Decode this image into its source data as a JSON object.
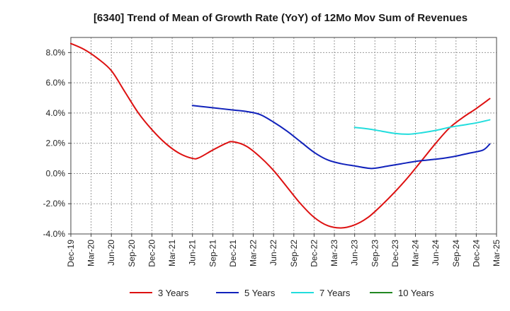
{
  "chart_data": {
    "type": "line",
    "title": "[6340]  Trend of Mean of Growth Rate (YoY) of 12Mo Mov Sum of Revenues",
    "xlabel": "",
    "ylabel": "",
    "ylim": [
      -4.0,
      9.0
    ],
    "yticks": [
      -4.0,
      -2.0,
      0.0,
      2.0,
      4.0,
      6.0,
      8.0
    ],
    "ytick_labels": [
      "-4.0%",
      "-2.0%",
      "0.0%",
      "2.0%",
      "4.0%",
      "6.0%",
      "8.0%"
    ],
    "xlim_months": [
      0,
      63
    ],
    "xticks_months": [
      0,
      3,
      6,
      9,
      12,
      15,
      18,
      21,
      24,
      27,
      30,
      33,
      36,
      39,
      42,
      45,
      48,
      51,
      54,
      57,
      60,
      63
    ],
    "xtick_labels": [
      "Dec-19",
      "Mar-20",
      "Jun-20",
      "Sep-20",
      "Dec-20",
      "Mar-21",
      "Jun-21",
      "Sep-21",
      "Dec-21",
      "Mar-22",
      "Jun-22",
      "Sep-22",
      "Dec-22",
      "Mar-23",
      "Jun-23",
      "Sep-23",
      "Dec-23",
      "Mar-24",
      "Jun-24",
      "Sep-24",
      "Dec-24",
      "Mar-25"
    ],
    "grid": true,
    "legend_position": "bottom",
    "series": [
      {
        "name": "3 Years",
        "color": "#dd1111",
        "points": [
          [
            0,
            8.6
          ],
          [
            2,
            8.2
          ],
          [
            4,
            7.6
          ],
          [
            6,
            6.8
          ],
          [
            8,
            5.4
          ],
          [
            10,
            4.0
          ],
          [
            12,
            2.9
          ],
          [
            14,
            2.0
          ],
          [
            16,
            1.35
          ],
          [
            18,
            1.0
          ],
          [
            19,
            1.05
          ],
          [
            21,
            1.55
          ],
          [
            23,
            2.0
          ],
          [
            24,
            2.1
          ],
          [
            26,
            1.8
          ],
          [
            28,
            1.1
          ],
          [
            30,
            0.2
          ],
          [
            32,
            -0.9
          ],
          [
            34,
            -2.0
          ],
          [
            36,
            -2.9
          ],
          [
            38,
            -3.45
          ],
          [
            40,
            -3.6
          ],
          [
            42,
            -3.4
          ],
          [
            44,
            -2.9
          ],
          [
            46,
            -2.1
          ],
          [
            48,
            -1.2
          ],
          [
            50,
            -0.2
          ],
          [
            52,
            0.9
          ],
          [
            54,
            2.0
          ],
          [
            56,
            3.0
          ],
          [
            58,
            3.7
          ],
          [
            60,
            4.3
          ],
          [
            62,
            4.95
          ]
        ]
      },
      {
        "name": "5 Years",
        "color": "#1122bb",
        "points": [
          [
            18,
            4.5
          ],
          [
            20,
            4.4
          ],
          [
            22,
            4.3
          ],
          [
            24,
            4.2
          ],
          [
            26,
            4.1
          ],
          [
            28,
            3.9
          ],
          [
            30,
            3.4
          ],
          [
            32,
            2.8
          ],
          [
            34,
            2.1
          ],
          [
            36,
            1.4
          ],
          [
            38,
            0.9
          ],
          [
            40,
            0.65
          ],
          [
            42,
            0.5
          ],
          [
            44,
            0.35
          ],
          [
            45,
            0.35
          ],
          [
            47,
            0.5
          ],
          [
            49,
            0.65
          ],
          [
            51,
            0.8
          ],
          [
            53,
            0.9
          ],
          [
            55,
            1.0
          ],
          [
            57,
            1.15
          ],
          [
            59,
            1.35
          ],
          [
            61,
            1.55
          ],
          [
            62,
            1.95
          ]
        ]
      },
      {
        "name": "7 Years",
        "color": "#22dddd",
        "points": [
          [
            42,
            3.05
          ],
          [
            44,
            2.95
          ],
          [
            46,
            2.8
          ],
          [
            48,
            2.65
          ],
          [
            50,
            2.6
          ],
          [
            52,
            2.7
          ],
          [
            54,
            2.85
          ],
          [
            56,
            3.05
          ],
          [
            58,
            3.2
          ],
          [
            60,
            3.35
          ],
          [
            62,
            3.55
          ]
        ]
      },
      {
        "name": "10 Years",
        "color": "#228822",
        "points": []
      }
    ]
  }
}
